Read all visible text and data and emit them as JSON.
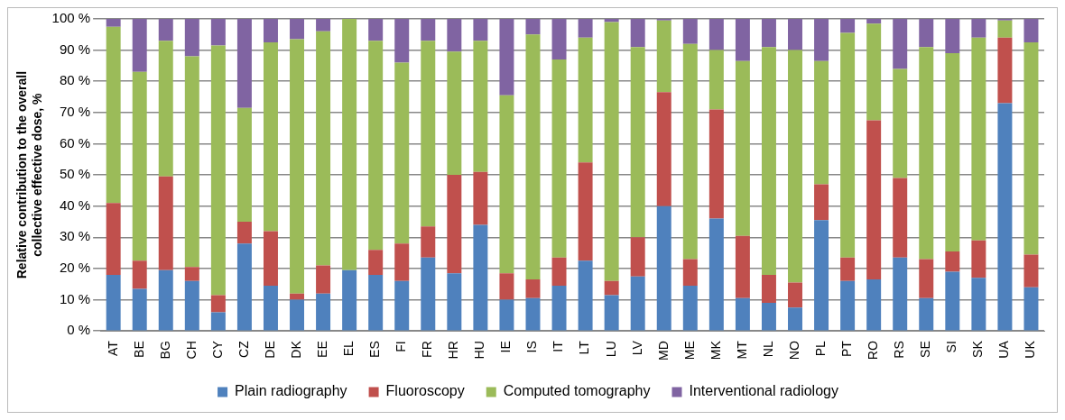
{
  "chart_data": {
    "type": "bar",
    "stacked": true,
    "ylabel": "Relative contribution to the overall collective effective dose, %",
    "categories": [
      "AT",
      "BE",
      "BG",
      "CH",
      "CY",
      "CZ",
      "DE",
      "DK",
      "EE",
      "EL",
      "ES",
      "FI",
      "FR",
      "HR",
      "HU",
      "IE",
      "IS",
      "IT",
      "LT",
      "LU",
      "LV",
      "MD",
      "ME",
      "MK",
      "MT",
      "NL",
      "NO",
      "PL",
      "PT",
      "RO",
      "RS",
      "SE",
      "SI",
      "SK",
      "UA",
      "UK"
    ],
    "series": [
      {
        "name": "Plain radiography",
        "color": "#4f81bd",
        "values": [
          18,
          13.5,
          19.5,
          16,
          6,
          28,
          14.5,
          10,
          12,
          19.5,
          18,
          16,
          23.5,
          18.5,
          34,
          10,
          10.5,
          14.5,
          22.5,
          11.5,
          17.5,
          40,
          14.5,
          36,
          10.5,
          9,
          7.5,
          35.5,
          16,
          16.5,
          23.5,
          10.5,
          19,
          17,
          73,
          14
        ]
      },
      {
        "name": "Fluoroscopy",
        "color": "#c0504d",
        "values": [
          23,
          9,
          30,
          4.5,
          5.5,
          7,
          17.5,
          2,
          9,
          0,
          8,
          12,
          10,
          31.5,
          17,
          8.5,
          6,
          9,
          31.5,
          4.5,
          12.5,
          36.5,
          8.5,
          35,
          20,
          9,
          8,
          11.5,
          7.5,
          51,
          25.5,
          12.5,
          6.5,
          12,
          21,
          10.5
        ]
      },
      {
        "name": "Computed tomography",
        "color": "#9bbb59",
        "values": [
          56.5,
          60.5,
          43.5,
          67.5,
          80,
          36.5,
          60.5,
          81.5,
          75,
          80.5,
          67,
          58,
          59.5,
          39.5,
          42,
          57,
          78.5,
          63.5,
          40,
          83,
          61,
          23,
          69,
          19,
          56,
          73,
          74.5,
          39.5,
          72,
          31,
          35,
          68,
          63.5,
          65,
          5.5,
          68
        ]
      },
      {
        "name": "Interventional radiology",
        "color": "#8064a2",
        "values": [
          2.5,
          17,
          7,
          12,
          8.5,
          28.5,
          7.5,
          6.5,
          4,
          0,
          7,
          14,
          7,
          10.5,
          7,
          24.5,
          5,
          13,
          6,
          1,
          9,
          0.5,
          8,
          10,
          13.5,
          9,
          10,
          13.5,
          4.5,
          1.5,
          16,
          9,
          11,
          6,
          0.5,
          7.5
        ]
      }
    ],
    "ylim": [
      0,
      100
    ],
    "yticks": [
      {
        "value": 0,
        "label": "0 %"
      },
      {
        "value": 10,
        "label": "10 %"
      },
      {
        "value": 20,
        "label": "20 %"
      },
      {
        "value": 30,
        "label": "30 %"
      },
      {
        "value": 40,
        "label": "40 %"
      },
      {
        "value": 50,
        "label": "50 %"
      },
      {
        "value": 60,
        "label": "60 %"
      },
      {
        "value": 70,
        "label": "70 %"
      },
      {
        "value": 80,
        "label": "80 %"
      },
      {
        "value": 90,
        "label": "90 %"
      },
      {
        "value": 100,
        "label": "100 %"
      }
    ],
    "grid": "y",
    "legend": "bottom"
  }
}
